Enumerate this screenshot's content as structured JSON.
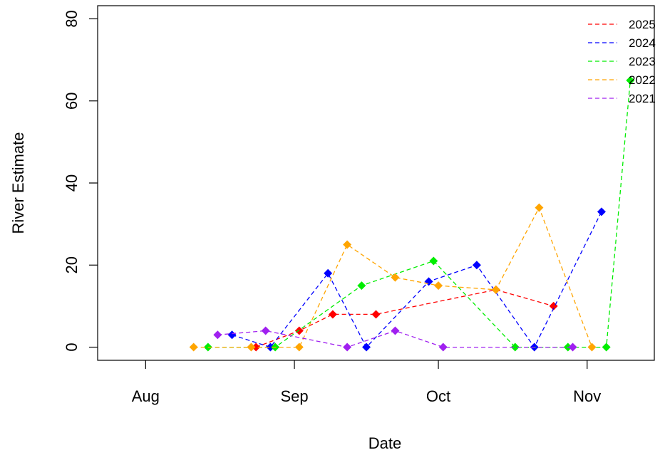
{
  "chart_data": {
    "type": "line",
    "xlabel": "Date",
    "ylabel": "River Estimate",
    "xlim": [
      "2000-07-22",
      "2000-11-15"
    ],
    "ylim": [
      -3.2,
      83.2
    ],
    "x_ticks": [
      {
        "date": "2000-08-01",
        "label": "Aug"
      },
      {
        "date": "2000-09-01",
        "label": "Sep"
      },
      {
        "date": "2000-10-01",
        "label": "Oct"
      },
      {
        "date": "2000-11-01",
        "label": "Nov"
      }
    ],
    "y_ticks": [
      0,
      20,
      40,
      60,
      80
    ],
    "grid": false,
    "legend_position": "top-right",
    "series": [
      {
        "name": "2025",
        "color": "#ff0000",
        "points": [
          {
            "x": "2000-08-24",
            "y": 0
          },
          {
            "x": "2000-09-02",
            "y": 4
          },
          {
            "x": "2000-09-09",
            "y": 8
          },
          {
            "x": "2000-09-18",
            "y": 8
          },
          {
            "x": "2000-10-13",
            "y": 14
          },
          {
            "x": "2000-10-25",
            "y": 10
          }
        ]
      },
      {
        "name": "2024",
        "color": "#0000ff",
        "points": [
          {
            "x": "2000-08-19",
            "y": 3
          },
          {
            "x": "2000-08-27",
            "y": 0
          },
          {
            "x": "2000-09-08",
            "y": 18
          },
          {
            "x": "2000-09-16",
            "y": 0
          },
          {
            "x": "2000-09-29",
            "y": 16
          },
          {
            "x": "2000-10-09",
            "y": 20
          },
          {
            "x": "2000-10-21",
            "y": 0
          },
          {
            "x": "2000-11-04",
            "y": 33
          }
        ]
      },
      {
        "name": "2023",
        "color": "#00ee00",
        "points": [
          {
            "x": "2000-08-14",
            "y": 0
          },
          {
            "x": "2000-08-28",
            "y": 0
          },
          {
            "x": "2000-09-15",
            "y": 15
          },
          {
            "x": "2000-09-30",
            "y": 21
          },
          {
            "x": "2000-10-17",
            "y": 0
          },
          {
            "x": "2000-10-28",
            "y": 0
          },
          {
            "x": "2000-11-05",
            "y": 0
          },
          {
            "x": "2000-11-10",
            "y": 65
          }
        ]
      },
      {
        "name": "2022",
        "color": "#ffa500",
        "points": [
          {
            "x": "2000-08-11",
            "y": 0
          },
          {
            "x": "2000-08-23",
            "y": 0
          },
          {
            "x": "2000-09-02",
            "y": 0
          },
          {
            "x": "2000-09-12",
            "y": 25
          },
          {
            "x": "2000-09-22",
            "y": 17
          },
          {
            "x": "2000-10-01",
            "y": 15
          },
          {
            "x": "2000-10-13",
            "y": 14
          },
          {
            "x": "2000-10-22",
            "y": 34
          },
          {
            "x": "2000-11-02",
            "y": 0
          }
        ]
      },
      {
        "name": "2021",
        "color": "#a020f0",
        "points": [
          {
            "x": "2000-08-16",
            "y": 3
          },
          {
            "x": "2000-08-26",
            "y": 4
          },
          {
            "x": "2000-09-12",
            "y": 0
          },
          {
            "x": "2000-09-22",
            "y": 4
          },
          {
            "x": "2000-10-02",
            "y": 0
          },
          {
            "x": "2000-10-29",
            "y": 0
          }
        ]
      }
    ]
  }
}
